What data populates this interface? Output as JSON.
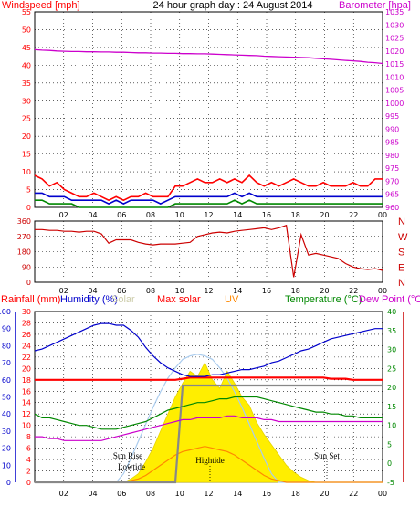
{
  "chart_data": [
    {
      "type": "line",
      "title": "24 hour graph day : 24 August 2014",
      "ylabel_left": "Windspeed [mph]",
      "ylabel_right": "Barometer [hpa]",
      "ylim_left": [
        0,
        55
      ],
      "ylim_right": [
        960,
        1035
      ],
      "y_ticks_left": [
        "0",
        "5",
        "10",
        "15",
        "20",
        "25",
        "30",
        "35",
        "40",
        "45",
        "50",
        "55"
      ],
      "y_ticks_right": [
        "960",
        "965",
        "970",
        "975",
        "980",
        "985",
        "990",
        "995",
        "1000",
        "1005",
        "1010",
        "1015",
        "1020",
        "1025",
        "1030",
        "1035"
      ],
      "x_ticks": [
        "02",
        "04",
        "06",
        "08",
        "10",
        "12",
        "14",
        "16",
        "18",
        "20",
        "22",
        "00"
      ],
      "series": [
        {
          "key": "gust",
          "color": "#ff0000",
          "values": [
            9,
            8,
            6,
            7,
            5,
            4,
            3,
            3,
            4,
            3,
            2,
            3,
            2,
            3,
            3,
            4,
            3,
            3,
            3,
            6,
            6,
            7,
            8,
            7,
            7,
            8,
            7,
            8,
            7,
            9,
            7,
            6,
            7,
            6,
            7,
            8,
            7,
            6,
            6,
            7,
            6,
            6,
            6,
            7,
            6,
            6,
            8,
            8
          ]
        },
        {
          "key": "wind",
          "color": "#0000cc",
          "values": [
            4,
            4,
            3,
            3,
            3,
            2,
            2,
            2,
            2,
            2,
            1,
            2,
            1,
            2,
            2,
            2,
            2,
            1,
            2,
            3,
            3,
            3,
            3,
            3,
            3,
            3,
            3,
            4,
            3,
            4,
            3,
            3,
            3,
            3,
            3,
            3,
            3,
            3,
            3,
            3,
            3,
            3,
            3,
            3,
            3,
            3,
            3,
            3
          ]
        },
        {
          "key": "wind_low",
          "color": "#008800",
          "values": [
            2,
            2,
            1,
            1,
            1,
            1,
            0,
            0,
            0,
            0,
            0,
            0,
            0,
            0,
            0,
            0,
            0,
            0,
            0,
            1,
            1,
            1,
            1,
            1,
            1,
            1,
            1,
            2,
            1,
            2,
            1,
            1,
            1,
            1,
            1,
            1,
            1,
            1,
            1,
            1,
            1,
            1,
            1,
            1,
            1,
            1,
            1,
            1
          ]
        },
        {
          "key": "barometer",
          "color": "#cc00cc",
          "axis": "right",
          "values": [
            1020.5,
            1020.3,
            1020.2,
            1020.0,
            1019.9,
            1019.8,
            1019.8,
            1019.7,
            1019.7,
            1019.6,
            1019.6,
            1019.5,
            1019.5,
            1019.4,
            1019.3,
            1019.3,
            1019.2,
            1019.2,
            1019.1,
            1019.1,
            1019.0,
            1019.0,
            1018.9,
            1018.9,
            1018.8,
            1018.7,
            1018.6,
            1018.5,
            1018.4,
            1018.3,
            1018.2,
            1018.0,
            1017.9,
            1017.8,
            1017.7,
            1017.6,
            1017.5,
            1017.4,
            1017.2,
            1017.0,
            1016.8,
            1016.6,
            1016.4,
            1016.2,
            1016.0,
            1015.7,
            1015.5,
            1015.2
          ]
        }
      ]
    },
    {
      "type": "line",
      "ylim": [
        0,
        360
      ],
      "y_ticks": [
        "0",
        "90",
        "180",
        "270",
        "360"
      ],
      "right_ticks": [
        "N",
        "W",
        "S",
        "E",
        "N"
      ],
      "x_ticks": [
        "02",
        "04",
        "06",
        "08",
        "10",
        "12",
        "14",
        "16",
        "18",
        "20",
        "22",
        "00"
      ],
      "series": [
        {
          "key": "direction",
          "color": "#cc0000",
          "values": [
            310,
            310,
            305,
            305,
            300,
            300,
            295,
            300,
            300,
            285,
            230,
            250,
            250,
            250,
            235,
            225,
            220,
            225,
            225,
            225,
            230,
            235,
            270,
            280,
            290,
            295,
            290,
            300,
            305,
            310,
            315,
            320,
            310,
            320,
            335,
            30,
            280,
            160,
            170,
            160,
            150,
            140,
            110,
            90,
            80,
            75,
            80,
            70
          ]
        }
      ]
    },
    {
      "type": "line",
      "legend": [
        "Rainfall (mm)",
        "Humidity (%)",
        "Solar",
        "Max solar",
        "UV",
        "Temperature (°C)",
        "Dew Point (°C)"
      ],
      "axis_humidity": [
        "0",
        "10",
        "20",
        "30",
        "40",
        "50",
        "60",
        "70",
        "80",
        "90",
        "100"
      ],
      "axis_rain": [
        "0",
        "2",
        "4",
        "6",
        "8",
        "10",
        "12",
        "14",
        "16",
        "18",
        "20",
        "22",
        "24",
        "26",
        "28",
        "30"
      ],
      "axis_temp": [
        "-5",
        "0",
        "5",
        "10",
        "15",
        "20",
        "25",
        "30",
        "35",
        "40"
      ],
      "x_ticks": [
        "02",
        "04",
        "06",
        "08",
        "10",
        "12",
        "14",
        "16",
        "18",
        "20",
        "22",
        "00"
      ],
      "annotations": [
        "Sun Rise",
        "Lowtide",
        "Hightide",
        "Sun Set"
      ],
      "series": [
        {
          "key": "humidity",
          "axis": "humidity",
          "color": "#0000cc",
          "values": [
            77,
            78,
            80,
            82,
            84,
            86,
            88,
            90,
            92,
            93,
            93,
            92,
            92,
            89,
            85,
            79,
            74,
            70,
            67,
            65,
            63,
            62,
            62,
            62,
            63,
            63,
            64,
            65,
            66,
            66,
            67,
            68,
            70,
            71,
            73,
            75,
            77,
            78,
            80,
            82,
            84,
            85,
            86,
            87,
            88,
            89,
            90,
            90
          ]
        },
        {
          "key": "temperature",
          "axis": "temp",
          "color": "#008800",
          "values": [
            13,
            12,
            12,
            11.5,
            11,
            10.5,
            10,
            10,
            9.5,
            9,
            9,
            9,
            9.5,
            10,
            10.5,
            11,
            12,
            13,
            14,
            14.5,
            15,
            15.5,
            16,
            16,
            16.5,
            17,
            17,
            17.5,
            17.5,
            17.5,
            17.5,
            17,
            16.5,
            16,
            15.5,
            15,
            14.5,
            14,
            13.5,
            13.5,
            13,
            13,
            12.5,
            12.5,
            12,
            12,
            12,
            12
          ]
        },
        {
          "key": "dewpoint",
          "axis": "temp",
          "color": "#cc00cc",
          "values": [
            7,
            7,
            6.5,
            6.5,
            6,
            6,
            6,
            6,
            6,
            6,
            6.5,
            7,
            7.5,
            8,
            8.5,
            9,
            9.5,
            10,
            10.5,
            11,
            11.5,
            11.5,
            12,
            12,
            12,
            12,
            12.5,
            12.5,
            12,
            12,
            12,
            11.5,
            11.5,
            11,
            11,
            11,
            11,
            11,
            11,
            11,
            11,
            11,
            11,
            11,
            11,
            11,
            11,
            11
          ]
        },
        {
          "key": "solar",
          "axis": "humidity",
          "color": "#ffee00",
          "values": [
            0,
            0,
            0,
            0,
            0,
            0,
            0,
            0,
            0,
            0,
            0,
            0,
            0,
            2,
            5,
            12,
            20,
            30,
            40,
            50,
            58,
            65,
            62,
            70,
            60,
            55,
            65,
            58,
            50,
            45,
            35,
            28,
            22,
            16,
            10,
            6,
            3,
            1,
            0,
            0,
            0,
            0,
            0,
            0,
            0,
            0,
            0,
            0
          ]
        },
        {
          "key": "max_solar",
          "axis": "humidity",
          "color": "#aaccee",
          "values": [
            0,
            0,
            0,
            0,
            0,
            0,
            0,
            0,
            0,
            0,
            0,
            0,
            5,
            14,
            24,
            34,
            44,
            53,
            61,
            67,
            72,
            74,
            75,
            74,
            72,
            67,
            61,
            53,
            44,
            34,
            24,
            14,
            5,
            0,
            0,
            0,
            0,
            0,
            0,
            0,
            0,
            0,
            0,
            0,
            0,
            0,
            0,
            0
          ]
        },
        {
          "key": "uv",
          "axis": "humidity",
          "color": "#ff8800",
          "values": [
            0,
            0,
            0,
            0,
            0,
            0,
            0,
            0,
            0,
            0,
            0,
            0,
            0,
            1,
            2,
            4,
            7,
            10,
            13,
            16,
            18,
            19,
            20,
            21,
            20,
            19,
            18,
            16,
            13,
            10,
            7,
            4,
            2,
            1,
            0,
            0,
            0,
            0,
            0,
            0,
            0,
            0,
            0,
            0,
            0,
            0,
            0,
            0
          ]
        },
        {
          "key": "rain_rate",
          "axis": "rain",
          "color": "#ff0000",
          "values": [
            18,
            18,
            18,
            18,
            18,
            18,
            18,
            18,
            18,
            18,
            18,
            18,
            18,
            18,
            18,
            18,
            18,
            18,
            18,
            18,
            18.2,
            18.4,
            18.4,
            18.4,
            18.4,
            18.4,
            18.4,
            18.4,
            18.4,
            18.4,
            18.4,
            18.4,
            18.4,
            18.4,
            18.4,
            18.4,
            18.4,
            18.4,
            18.4,
            18.4,
            18.2,
            18.2,
            18.2,
            18,
            18,
            18,
            18,
            18
          ]
        },
        {
          "key": "rain_total",
          "axis": "rain",
          "color": "#888888",
          "values": [
            0,
            0,
            0,
            0,
            0,
            0,
            0,
            0,
            0,
            0,
            0,
            0,
            0,
            0,
            0,
            0,
            0,
            0,
            0,
            0,
            17,
            17,
            17,
            17,
            17,
            17,
            17,
            17,
            17,
            17,
            17,
            17,
            17,
            17,
            17,
            17,
            17,
            17,
            17,
            17,
            17,
            17,
            17,
            17,
            17,
            17,
            17,
            17
          ]
        }
      ]
    }
  ]
}
